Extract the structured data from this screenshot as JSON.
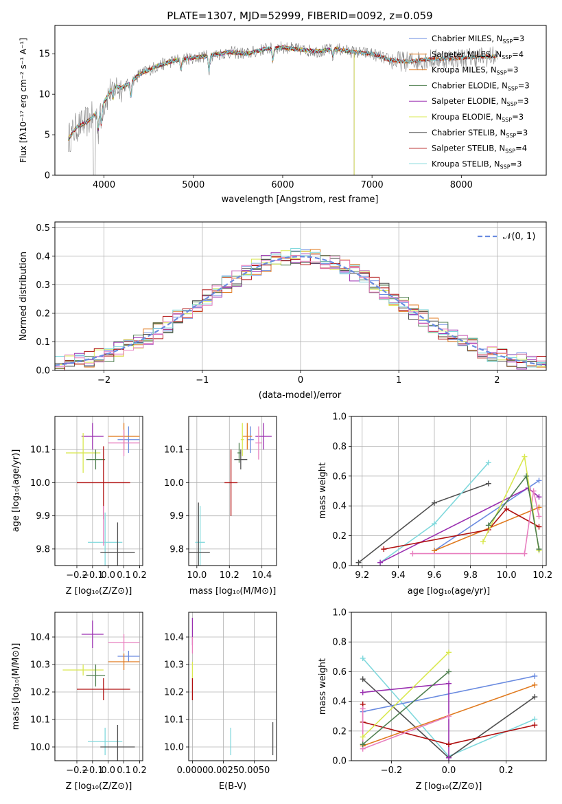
{
  "figure_title": "PLATE=1307, MJD=52999, FIBERID=0092, z=0.059",
  "model_colors": {
    "Chabrier MILES": "#6a8be0",
    "Salpeter MILES": "#e07a1f",
    "Kroupa MILES": "#e07a1f",
    "Chabrier ELODIE": "#4f7f4f",
    "Salpeter ELODIE": "#9a2fb0",
    "Kroupa ELODIE": "#d9e84f",
    "Chabrier STELIB": "#505050",
    "Salpeter STELIB": "#b01010",
    "Kroupa STELIB": "#7fd8dc",
    "observed": "#808080",
    "extra pink": "#e87fbf"
  },
  "chart_data": [
    {
      "type": "line",
      "panel": "spectrum",
      "title": "PLATE=1307, MJD=52999, FIBERID=0092, z=0.059",
      "xlabel": "wavelength [Angstrom, rest frame]",
      "ylabel": "Flux [fλ10⁻¹⁷ erg cm⁻² s⁻¹ A⁻¹]",
      "xlim": [
        3450,
        8950
      ],
      "ylim": [
        0,
        18.5
      ],
      "xticks": [
        4000,
        5000,
        6000,
        7000,
        8000
      ],
      "yticks": [
        0,
        5,
        10,
        15
      ],
      "grid": false,
      "legend": "top-right",
      "legend_entries": [
        {
          "name": "Chabrier MILES",
          "nssp": "3"
        },
        {
          "name": "Salpeter MILES",
          "nssp": "4"
        },
        {
          "name": "Kroupa MILES",
          "nssp": "3"
        },
        {
          "name": "Chabrier ELODIE",
          "nssp": "3"
        },
        {
          "name": "Salpeter ELODIE",
          "nssp": "3"
        },
        {
          "name": "Kroupa ELODIE",
          "nssp": "3"
        },
        {
          "name": "Chabrier STELIB",
          "nssp": "3"
        },
        {
          "name": "Salpeter STELIB",
          "nssp": "4"
        },
        {
          "name": "Kroupa STELIB",
          "nssp": "3"
        }
      ],
      "continuum": {
        "x": [
          3600,
          3700,
          3800,
          3900,
          4000,
          4100,
          4200,
          4300,
          4400,
          4600,
          4800,
          5000,
          5200,
          5400,
          5600,
          5800,
          6000,
          6200,
          6400,
          6600,
          6800,
          7000,
          7200,
          7400,
          7600,
          7800,
          8000,
          8200,
          8400
        ],
        "y": [
          4.5,
          6.0,
          6.5,
          7.5,
          9.0,
          11.0,
          10.8,
          11.5,
          12.5,
          13.5,
          14.2,
          14.5,
          14.8,
          15.2,
          15.0,
          15.6,
          15.8,
          15.5,
          15.3,
          15.6,
          15.2,
          15.0,
          14.2,
          14.0,
          14.3,
          14.4,
          14.5,
          14.6,
          14.7
        ]
      }
    },
    {
      "type": "histogram",
      "panel": "residuals",
      "xlabel": "(data-model)/error",
      "ylabel": "Normed distribution",
      "xlim": [
        -2.5,
        2.5
      ],
      "ylim": [
        0,
        0.52
      ],
      "xticks": [
        -2,
        -1,
        0,
        1,
        2
      ],
      "yticks": [
        0.0,
        0.1,
        0.2,
        0.3,
        0.4,
        0.5
      ],
      "grid": true,
      "legend": "top-right",
      "reference_curve": "𝒩(0, 1)",
      "bin_width": 0.1
    },
    {
      "type": "scatter",
      "panel": "age-vs-Z",
      "xlabel": "Z [log₁₀(Z/Z⊙)]",
      "ylabel": "age  [log₁₀(age/yr)]",
      "xlim": [
        -0.34,
        0.22
      ],
      "ylim": [
        9.75,
        10.2
      ],
      "xticks": [
        -0.2,
        -0.1,
        0.0,
        0.1,
        0.2
      ],
      "yticks": [
        9.8,
        9.9,
        10.0,
        10.1
      ],
      "grid": true,
      "points": [
        {
          "color": "#6a8be0",
          "x": 0.13,
          "y": 10.13,
          "xerr": 0.07,
          "yerr": 0.04
        },
        {
          "color": "#e07a1f",
          "x": 0.1,
          "y": 10.14,
          "xerr": 0.1,
          "yerr": 0.04
        },
        {
          "color": "#e87fbf",
          "x": 0.1,
          "y": 10.12,
          "xerr": 0.1,
          "yerr": 0.04
        },
        {
          "color": "#9a2fb0",
          "x": -0.1,
          "y": 10.14,
          "xerr": 0.07,
          "yerr": 0.04
        },
        {
          "color": "#d9e84f",
          "x": -0.16,
          "y": 10.09,
          "xerr": 0.11,
          "yerr": 0.06
        },
        {
          "color": "#4f7f4f",
          "x": -0.08,
          "y": 10.07,
          "xerr": 0.06,
          "yerr": 0.03
        },
        {
          "color": "#b01010",
          "x": -0.03,
          "y": 10.0,
          "xerr": 0.17,
          "yerr": 0.11
        },
        {
          "color": "#7fd8dc",
          "x": -0.02,
          "y": 9.82,
          "xerr": 0.11,
          "yerr": 0.09
        },
        {
          "color": "#505050",
          "x": 0.06,
          "y": 9.79,
          "xerr": 0.11,
          "yerr": 0.09
        },
        {
          "color": "#e87fbf",
          "x": -0.03,
          "y": 9.87,
          "xerr": 0.0,
          "yerr": 0.06
        }
      ]
    },
    {
      "type": "scatter",
      "panel": "age-vs-mass",
      "xlabel": "mass [log₁₀(M/M⊙)]",
      "xlim": [
        9.95,
        10.49
      ],
      "ylim": [
        9.75,
        10.2
      ],
      "xticks": [
        10.0,
        10.2,
        10.4
      ],
      "yticks": [
        9.8,
        9.9,
        10.0,
        10.1
      ],
      "grid": true,
      "points": [
        {
          "color": "#6a8be0",
          "x": 10.33,
          "y": 10.13,
          "xerr": 0.02,
          "yerr": 0.04
        },
        {
          "color": "#e07a1f",
          "x": 10.31,
          "y": 10.14,
          "xerr": 0.03,
          "yerr": 0.04
        },
        {
          "color": "#9a2fb0",
          "x": 10.41,
          "y": 10.14,
          "xerr": 0.05,
          "yerr": 0.04
        },
        {
          "color": "#e87fbf",
          "x": 10.38,
          "y": 10.12,
          "xerr": 0.02,
          "yerr": 0.05
        },
        {
          "color": "#d9e84f",
          "x": 10.28,
          "y": 10.13,
          "xerr": 0.01,
          "yerr": 0.05
        },
        {
          "color": "#4f7f4f",
          "x": 10.26,
          "y": 10.09,
          "xerr": 0.01,
          "yerr": 0.03
        },
        {
          "color": "#505050",
          "x": 10.27,
          "y": 10.07,
          "xerr": 0.04,
          "yerr": 0.03
        },
        {
          "color": "#b01010",
          "x": 10.21,
          "y": 10.0,
          "xerr": 0.04,
          "yerr": 0.1
        },
        {
          "color": "#7fd8dc",
          "x": 10.02,
          "y": 9.82,
          "xerr": 0.03,
          "yerr": 0.11
        },
        {
          "color": "#505050",
          "x": 10.01,
          "y": 9.79,
          "xerr": 0.07,
          "yerr": 0.15
        }
      ]
    },
    {
      "type": "line",
      "panel": "mass-weight-vs-age",
      "xlabel": "age  [log₁₀(age/yr)]",
      "ylabel": "mass weight",
      "xlim": [
        9.14,
        10.22
      ],
      "ylim": [
        0,
        1.0
      ],
      "xticks": [
        9.2,
        9.4,
        9.6,
        9.8,
        10.0,
        10.2
      ],
      "yticks": [
        0.0,
        0.2,
        0.4,
        0.6,
        0.8,
        1.0
      ],
      "grid": true,
      "series": [
        {
          "color": "#505050",
          "x": [
            9.18,
            9.6,
            9.9
          ],
          "y": [
            0.02,
            0.42,
            0.55
          ]
        },
        {
          "color": "#7fd8dc",
          "x": [
            9.3,
            9.6,
            9.9
          ],
          "y": [
            0.02,
            0.28,
            0.69
          ]
        },
        {
          "color": "#6a8be0",
          "x": [
            9.6,
            10.18
          ],
          "y": [
            0.1,
            0.57
          ]
        },
        {
          "color": "#9a2fb0",
          "x": [
            9.3,
            10.12,
            10.18
          ],
          "y": [
            0.02,
            0.52,
            0.46
          ]
        },
        {
          "color": "#e07a1f",
          "x": [
            9.6,
            10.18
          ],
          "y": [
            0.1,
            0.39
          ]
        },
        {
          "color": "#b01010",
          "x": [
            9.32,
            9.9,
            10.0,
            10.18
          ],
          "y": [
            0.11,
            0.24,
            0.38,
            0.26
          ]
        },
        {
          "color": "#e87fbf",
          "x": [
            9.48,
            10.1,
            10.15,
            10.18
          ],
          "y": [
            0.08,
            0.08,
            0.5,
            0.33
          ]
        },
        {
          "color": "#d9e84f",
          "x": [
            9.87,
            10.1,
            10.18
          ],
          "y": [
            0.16,
            0.73,
            0.1
          ]
        },
        {
          "color": "#4f7f4f",
          "x": [
            9.9,
            10.11,
            10.18
          ],
          "y": [
            0.27,
            0.6,
            0.11
          ]
        }
      ]
    },
    {
      "type": "scatter",
      "panel": "mass-vs-Z",
      "xlabel": "Z [log₁₀(Z/Z⊙)]",
      "ylabel": "mass [log₁₀(M/M⊙)]",
      "xlim": [
        -0.34,
        0.22
      ],
      "ylim": [
        9.95,
        10.49
      ],
      "xticks": [
        -0.2,
        -0.1,
        0.0,
        0.1,
        0.2
      ],
      "yticks": [
        10.0,
        10.1,
        10.2,
        10.3,
        10.4
      ],
      "grid": true,
      "points": [
        {
          "color": "#9a2fb0",
          "x": -0.1,
          "y": 10.41,
          "xerr": 0.07,
          "yerr": 0.05
        },
        {
          "color": "#e87fbf",
          "x": 0.1,
          "y": 10.38,
          "xerr": 0.1,
          "yerr": 0.03
        },
        {
          "color": "#6a8be0",
          "x": 0.13,
          "y": 10.33,
          "xerr": 0.07,
          "yerr": 0.02
        },
        {
          "color": "#e07a1f",
          "x": 0.1,
          "y": 10.31,
          "xerr": 0.1,
          "yerr": 0.03
        },
        {
          "color": "#d9e84f",
          "x": -0.16,
          "y": 10.28,
          "xerr": 0.13,
          "yerr": 0.02
        },
        {
          "color": "#4f7f4f",
          "x": -0.08,
          "y": 10.26,
          "xerr": 0.06,
          "yerr": 0.04
        },
        {
          "color": "#b01010",
          "x": -0.03,
          "y": 10.21,
          "xerr": 0.17,
          "yerr": 0.04
        },
        {
          "color": "#7fd8dc",
          "x": -0.02,
          "y": 10.02,
          "xerr": 0.11,
          "yerr": 0.05
        },
        {
          "color": "#505050",
          "x": 0.06,
          "y": 10.0,
          "xerr": 0.11,
          "yerr": 0.08
        }
      ]
    },
    {
      "type": "scatter",
      "panel": "mass-vs-ebv",
      "xlabel": "E(B-V)",
      "xlim": [
        -0.0003,
        0.0068
      ],
      "ylim": [
        9.95,
        10.49
      ],
      "xticks": [
        0.0,
        0.0025,
        0.005
      ],
      "xticklabels": [
        "0.0000",
        "0.0025",
        "0.0050"
      ],
      "yticks": [
        10.0,
        10.1,
        10.2,
        10.3,
        10.4
      ],
      "grid": true,
      "points": [
        {
          "color": "#9a2fb0",
          "x": 0.0,
          "y": 10.42,
          "yerr": 0.05
        },
        {
          "color": "#e87fbf",
          "x": 0.0,
          "y": 10.37,
          "yerr": 0.03
        },
        {
          "color": "#d9e84f",
          "x": 0.0,
          "y": 10.28,
          "yerr": 0.03
        },
        {
          "color": "#b01010",
          "x": 0.0,
          "y": 10.21,
          "yerr": 0.04
        },
        {
          "color": "#7fd8dc",
          "x": 0.0031,
          "y": 10.02,
          "yerr": 0.05
        },
        {
          "color": "#505050",
          "x": 0.0065,
          "y": 10.03,
          "yerr": 0.06
        }
      ]
    },
    {
      "type": "line",
      "panel": "mass-weight-vs-Z",
      "xlabel": "Z [log₁₀(Z/Z⊙)]",
      "ylabel": "mass weight",
      "xlim": [
        -0.34,
        0.34
      ],
      "ylim": [
        0,
        1.0
      ],
      "xticks": [
        -0.2,
        0.0,
        0.2
      ],
      "yticks": [
        0.0,
        0.2,
        0.4,
        0.6,
        0.8,
        1.0
      ],
      "grid": true,
      "series": [
        {
          "color": "#7fd8dc",
          "x": [
            -0.3,
            0.0,
            0.3
          ],
          "y": [
            0.69,
            0.03,
            0.28
          ]
        },
        {
          "color": "#505050",
          "x": [
            -0.3,
            0.0,
            0.3
          ],
          "y": [
            0.55,
            0.02,
            0.43
          ]
        },
        {
          "color": "#6a8be0",
          "x": [
            -0.3,
            0.3
          ],
          "y": [
            0.33,
            0.57
          ]
        },
        {
          "color": "#9a2fb0",
          "x": [
            -0.3,
            0.0,
            0.0
          ],
          "y": [
            0.46,
            0.52,
            0.02
          ]
        },
        {
          "color": "#e07a1f",
          "x": [
            -0.3,
            0.3
          ],
          "y": [
            0.1,
            0.51
          ]
        },
        {
          "color": "#b01010",
          "x": [
            -0.3,
            -0.3,
            0.0,
            0.3
          ],
          "y": [
            0.38,
            0.26,
            0.11,
            0.24
          ]
        },
        {
          "color": "#e87fbf",
          "x": [
            -0.3,
            -0.3,
            0.0
          ],
          "y": [
            0.35,
            0.08,
            0.3
          ]
        },
        {
          "color": "#d9e84f",
          "x": [
            -0.3,
            0.0
          ],
          "y": [
            0.16,
            0.73
          ]
        },
        {
          "color": "#4f7f4f",
          "x": [
            -0.3,
            0.0
          ],
          "y": [
            0.11,
            0.6
          ]
        }
      ]
    }
  ]
}
